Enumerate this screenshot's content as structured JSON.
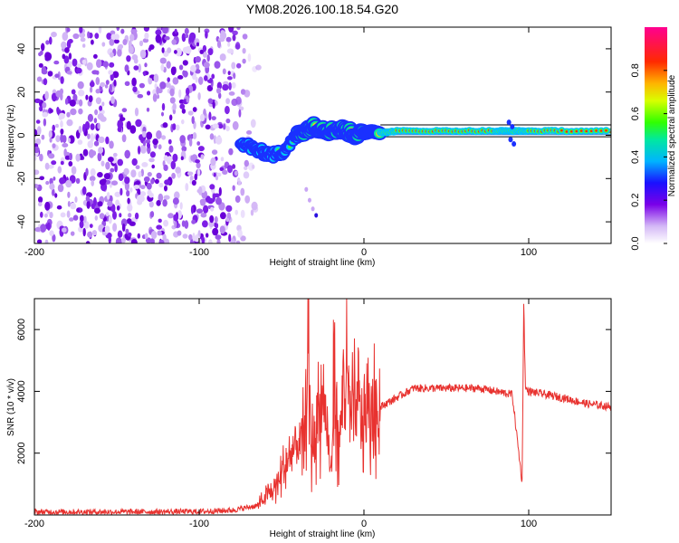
{
  "title": "YM08.2026.100.18.54.G20",
  "chart_data": [
    {
      "type": "heatmap",
      "id": "spectrogram",
      "xlabel": "Height of straight line (km)",
      "ylabel": "Frequency (Hz)",
      "xlim": [
        -200,
        150
      ],
      "ylim": [
        -50,
        50
      ],
      "xticks": [
        -200,
        -100,
        0,
        100
      ],
      "yticks": [
        -40,
        -20,
        0,
        20,
        40
      ],
      "colorbar": {
        "label": "Normalized spectral amplitude",
        "range": [
          0,
          1
        ],
        "ticks": [
          0.0,
          0.2,
          0.4,
          0.6,
          0.8
        ],
        "tick_labels": [
          "0.0",
          "0.2",
          "0.4",
          "0.6",
          "0.8"
        ]
      },
      "signal_trace": {
        "x": [
          -75,
          -70,
          -65,
          -60,
          -55,
          -50,
          -45,
          -40,
          -35,
          -30,
          -25,
          -20,
          -15,
          -10,
          -5,
          0,
          5,
          10,
          20,
          40,
          60,
          80,
          90,
          100,
          120,
          150
        ],
        "y": [
          -3,
          -5,
          -7,
          -8,
          -9,
          -8,
          -4,
          0,
          3,
          4,
          3,
          2,
          3,
          2,
          0,
          1,
          2,
          1,
          2,
          2,
          2,
          2,
          2,
          2,
          2,
          2
        ]
      }
    },
    {
      "type": "line",
      "id": "snr",
      "xlabel": "Height of straight line (km)",
      "ylabel": "SNR (10 * v/v)",
      "xlim": [
        -200,
        150
      ],
      "ylim": [
        0,
        7000
      ],
      "xticks": [
        -200,
        -100,
        0,
        100
      ],
      "yticks": [
        2000,
        4000,
        6000
      ],
      "color": "#e8322f",
      "series": [
        {
          "name": "SNR",
          "x": [
            -200,
            -150,
            -100,
            -80,
            -65,
            -55,
            -48,
            -42,
            -36,
            -34,
            -32,
            -28,
            -24,
            -20,
            -18,
            -15,
            -12,
            -8,
            -5,
            0,
            5,
            10,
            20,
            30,
            40,
            50,
            60,
            70,
            80,
            90,
            96,
            97,
            98,
            100,
            110,
            120,
            135,
            150
          ],
          "values": [
            100,
            100,
            110,
            150,
            300,
            800,
            1500,
            2200,
            2500,
            5500,
            2000,
            3300,
            3700,
            1200,
            4600,
            2200,
            4800,
            3200,
            3500,
            3200,
            3300,
            3500,
            3800,
            4100,
            4100,
            4100,
            4100,
            4100,
            4000,
            3900,
            1050,
            6900,
            4100,
            4000,
            3900,
            3800,
            3600,
            3500
          ]
        }
      ]
    }
  ]
}
